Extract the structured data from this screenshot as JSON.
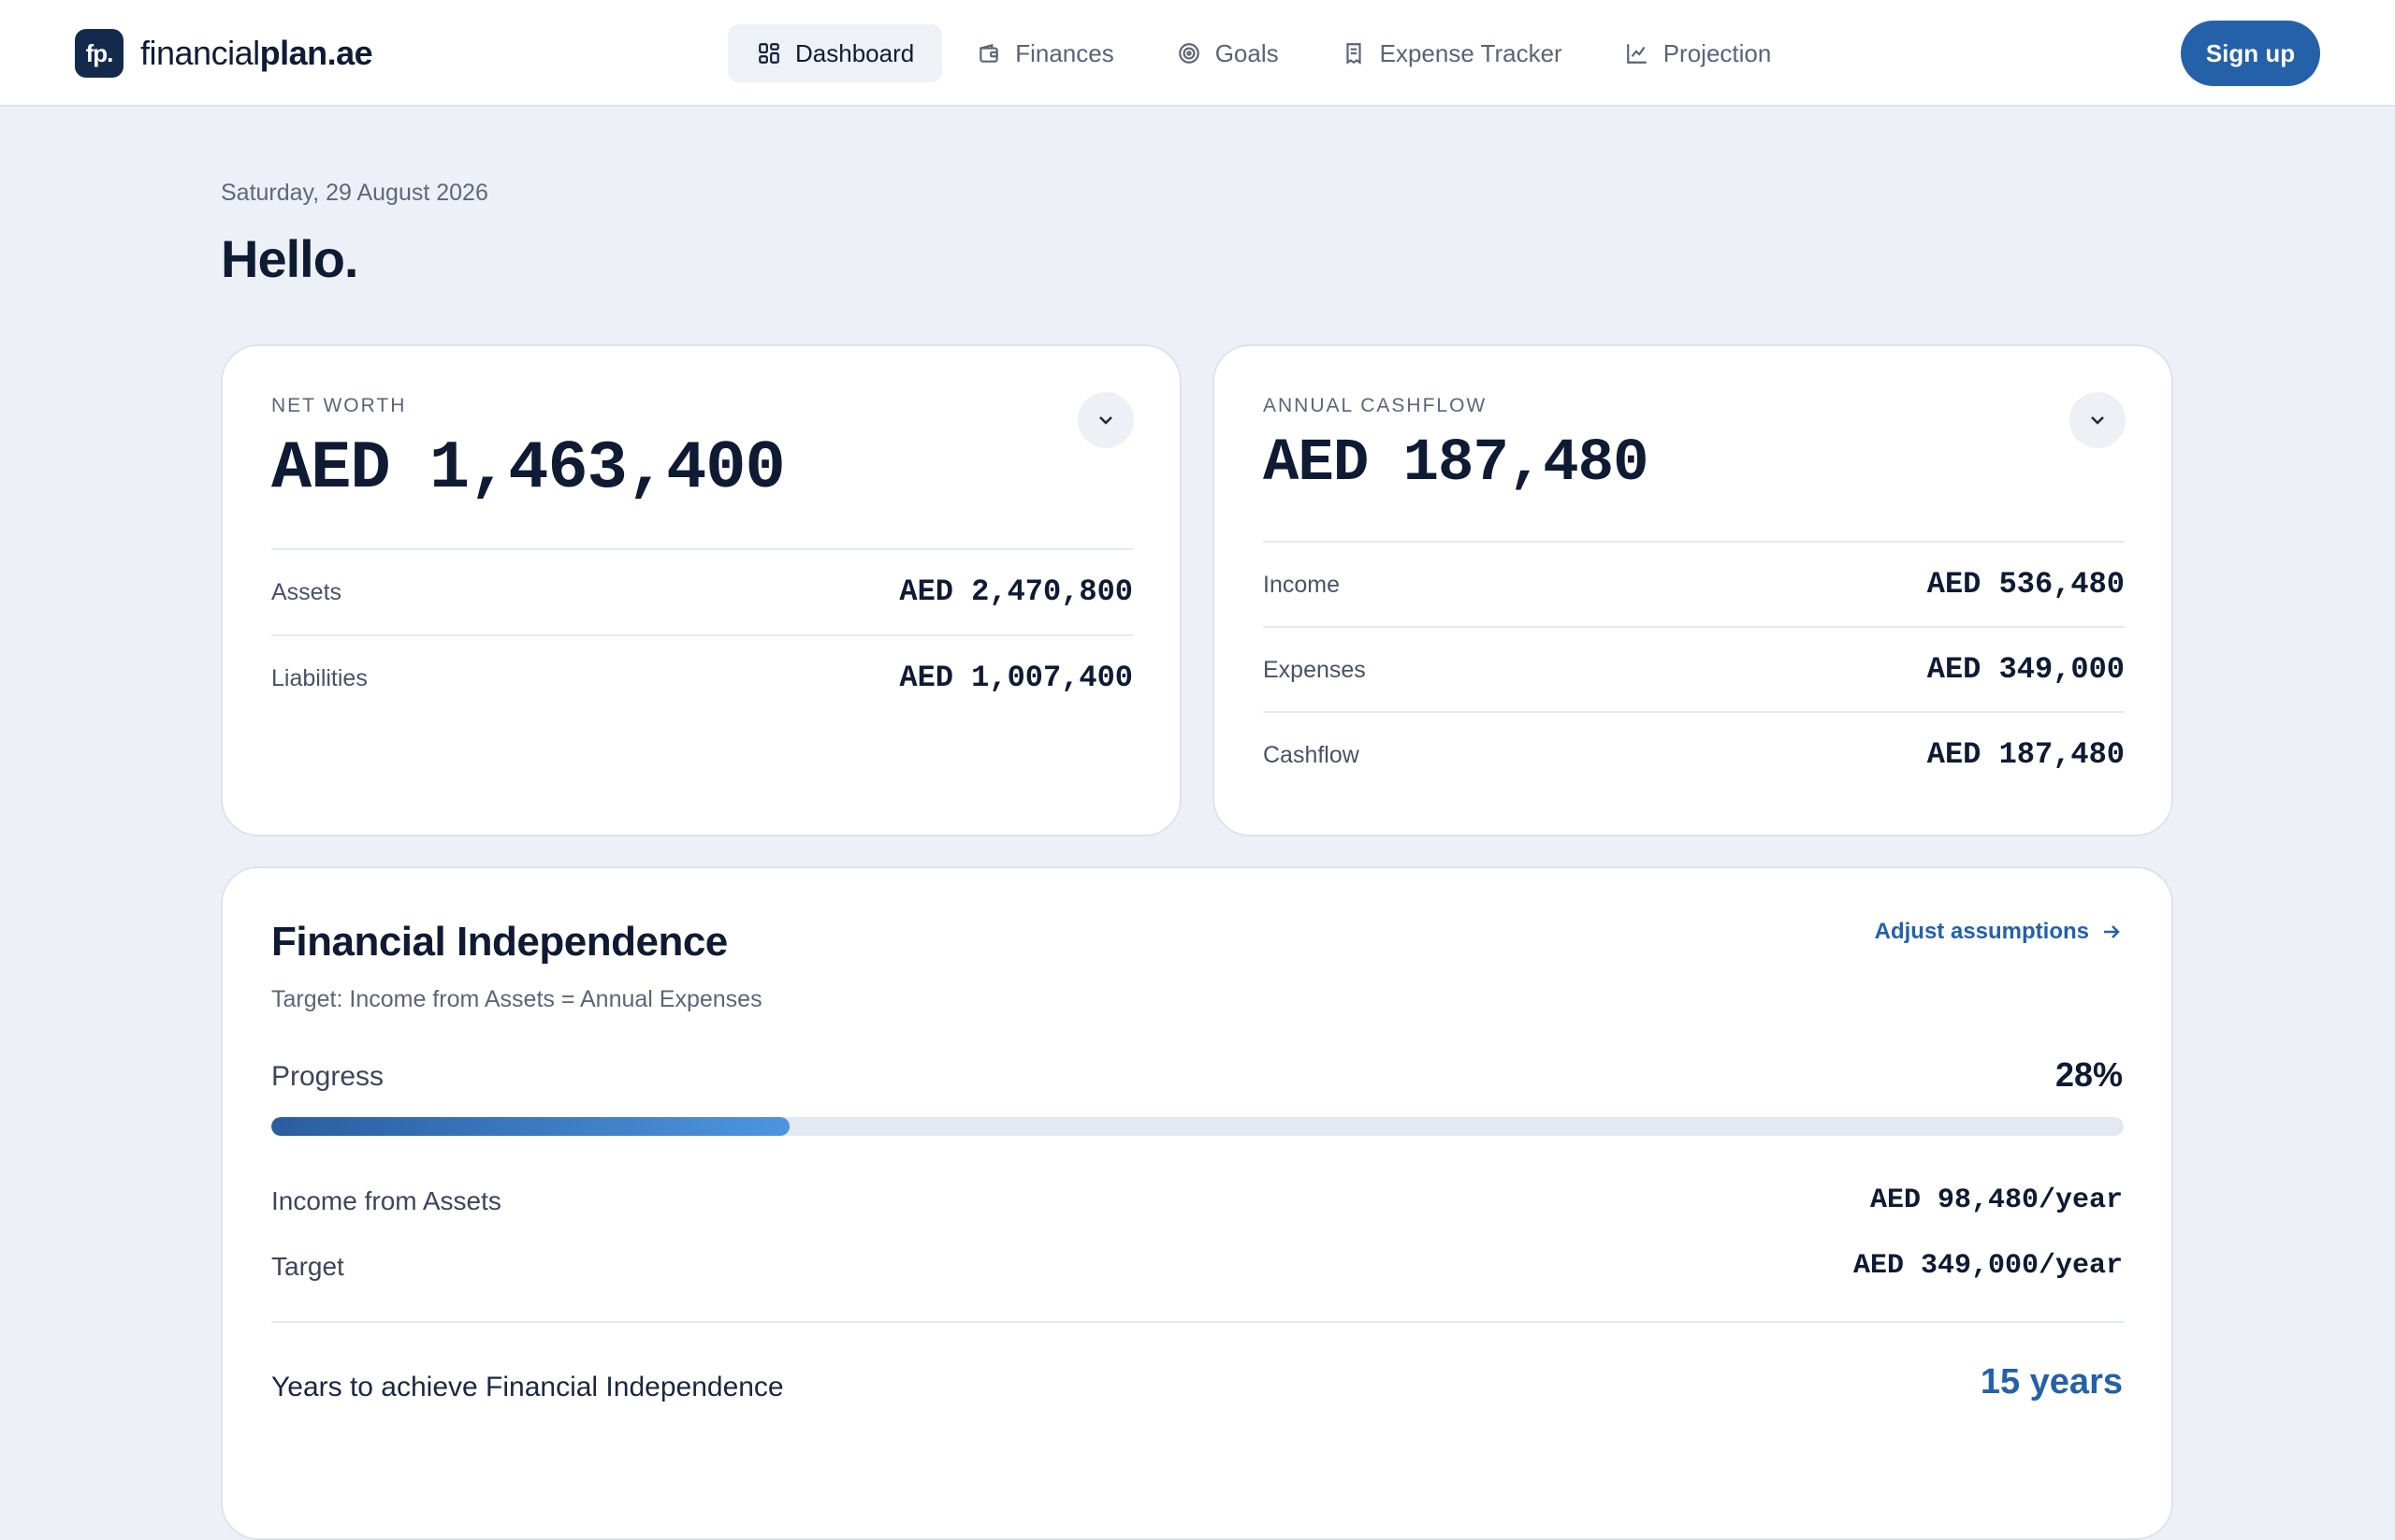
{
  "brand": {
    "mark": "fp.",
    "name_regular": "financial",
    "name_bold": "plan",
    "name_suffix": ".ae"
  },
  "nav": {
    "items": [
      {
        "label": "Dashboard",
        "icon": "grid-icon",
        "active": true
      },
      {
        "label": "Finances",
        "icon": "wallet-icon",
        "active": false
      },
      {
        "label": "Goals",
        "icon": "target-icon",
        "active": false
      },
      {
        "label": "Expense Tracker",
        "icon": "receipt-icon",
        "active": false
      },
      {
        "label": "Projection",
        "icon": "chart-icon",
        "active": false
      }
    ],
    "signup_label": "Sign up"
  },
  "header": {
    "date": "Saturday, 29 August 2026",
    "greeting": "Hello."
  },
  "net_worth": {
    "label": "NET WORTH",
    "value": "AED 1,463,400",
    "rows": [
      {
        "label": "Assets",
        "value": "AED 2,470,800"
      },
      {
        "label": "Liabilities",
        "value": "AED 1,007,400"
      }
    ]
  },
  "cashflow": {
    "label": "ANNUAL CASHFLOW",
    "value": "AED 187,480",
    "rows": [
      {
        "label": "Income",
        "value": "AED 536,480"
      },
      {
        "label": "Expenses",
        "value": "AED 349,000"
      },
      {
        "label": "Cashflow",
        "value": "AED 187,480"
      }
    ]
  },
  "fi": {
    "title": "Financial Independence",
    "subtitle": "Target: Income from Assets = Annual Expenses",
    "adjust_label": "Adjust assumptions",
    "progress_label": "Progress",
    "progress_text": "28%",
    "progress_fraction": 0.28,
    "income_label": "Income from Assets",
    "income_value": "AED 98,480/year",
    "target_label": "Target",
    "target_value": "AED 349,000/year",
    "years_label": "Years to achieve Financial Independence",
    "years_value": "15 years"
  },
  "colors": {
    "accent": "#2461a8",
    "brand_dark": "#132a4d",
    "background": "#edf1f7"
  }
}
